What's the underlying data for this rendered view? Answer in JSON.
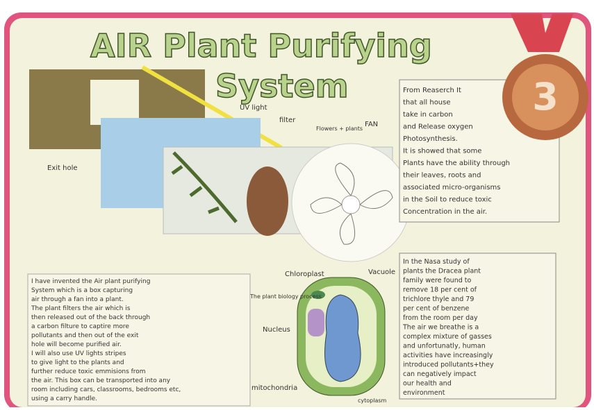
{
  "title": {
    "line1": "AIR Plant Purifying",
    "line2": "System"
  },
  "medal": {
    "rank": "3"
  },
  "labels": {
    "uv": "UV light",
    "filter": "filter",
    "plants": "Flowers + plants",
    "fan": "FAN",
    "exit": "Exit hole"
  },
  "research": {
    "lines": [
      "From Reaserch It",
      "that all house",
      "take in carbon",
      "and Release oxygen",
      "Photosynthesis.",
      "It is showed that some",
      "Plants have the ability through",
      "their leaves, roots and",
      "associated micro-organisms",
      "in the Soil to reduce toxic",
      "Concentration in the air."
    ]
  },
  "nasa": {
    "lines": [
      "In the Nasa study of",
      "plants the Dracea plant",
      "family were found to",
      "remove 18 per cent of",
      "trichlore thyle and 79",
      "per cent of benzene",
      "from the room per day",
      "The air we breathe is a",
      "complex mixture of gasses",
      "and unfortunatly, human",
      "activities have increasingly",
      "introduced pollutants+they",
      "can negatively impact",
      "our health and",
      "environment"
    ]
  },
  "description": {
    "lines": [
      "I have invented the Air plant purifying",
      "System which is a box capturing",
      "air through a fan into a plant.",
      "The plant filters the air which is",
      "then released out of the back through",
      "a carbon filture to captire more",
      "pollutants and then out of the exit",
      "hole will become purified air.",
      "I will also use UV lights stripes",
      "to give light to the plants and",
      "further reduce toxic emmisions from",
      "the air. This box can be transported into any",
      "room including cars, classrooms, bedrooms etc,",
      "using a carry handle."
    ]
  },
  "diagram": {
    "chloroplast": "Chloroplast",
    "vacuole": "Vacuole",
    "process": "The plant biology process",
    "nucleus": "Nucleus",
    "mitochondria": "mitochondria",
    "cytoplasm": "cytoplasm"
  }
}
